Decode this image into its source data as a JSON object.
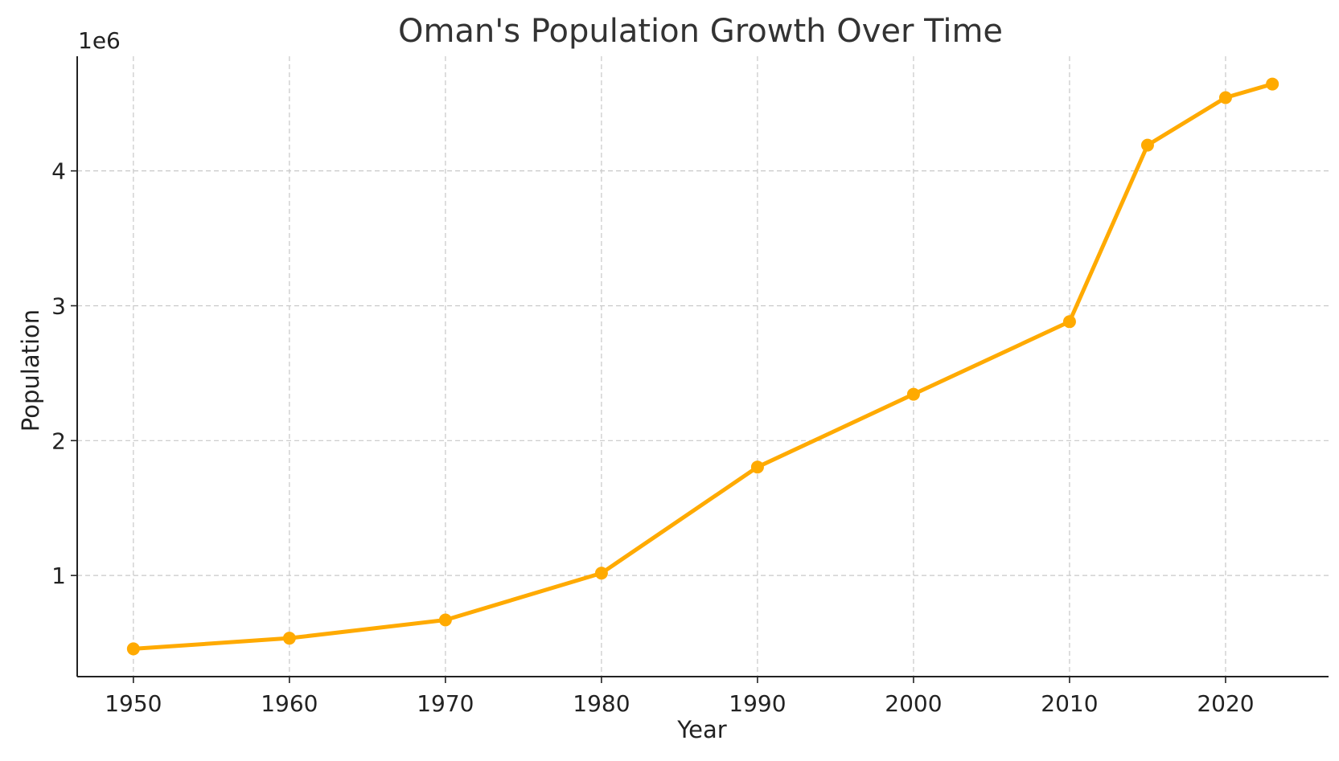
{
  "chart_data": {
    "type": "line",
    "title": "Oman's Population Growth Over Time",
    "xlabel": "Year",
    "ylabel": "Population",
    "y_offset_label": "1e6",
    "x_ticks": [
      1950,
      1960,
      1970,
      1980,
      1990,
      2000,
      2010,
      2020
    ],
    "y_ticks": [
      1,
      2,
      3,
      4
    ],
    "xlim": [
      1946.4,
      1926.6
    ],
    "ylim": [
      0.25,
      4.85
    ],
    "grid": true,
    "line_color": "#FFAA00",
    "series": [
      {
        "x": [
          1950,
          1960,
          1970,
          1980,
          1990,
          2000,
          2010,
          2015,
          2020,
          2023
        ],
        "values": [
          0.456,
          0.535,
          0.67,
          1.017,
          1.804,
          2.344,
          2.882,
          4.191,
          4.543,
          4.644
        ]
      }
    ]
  }
}
